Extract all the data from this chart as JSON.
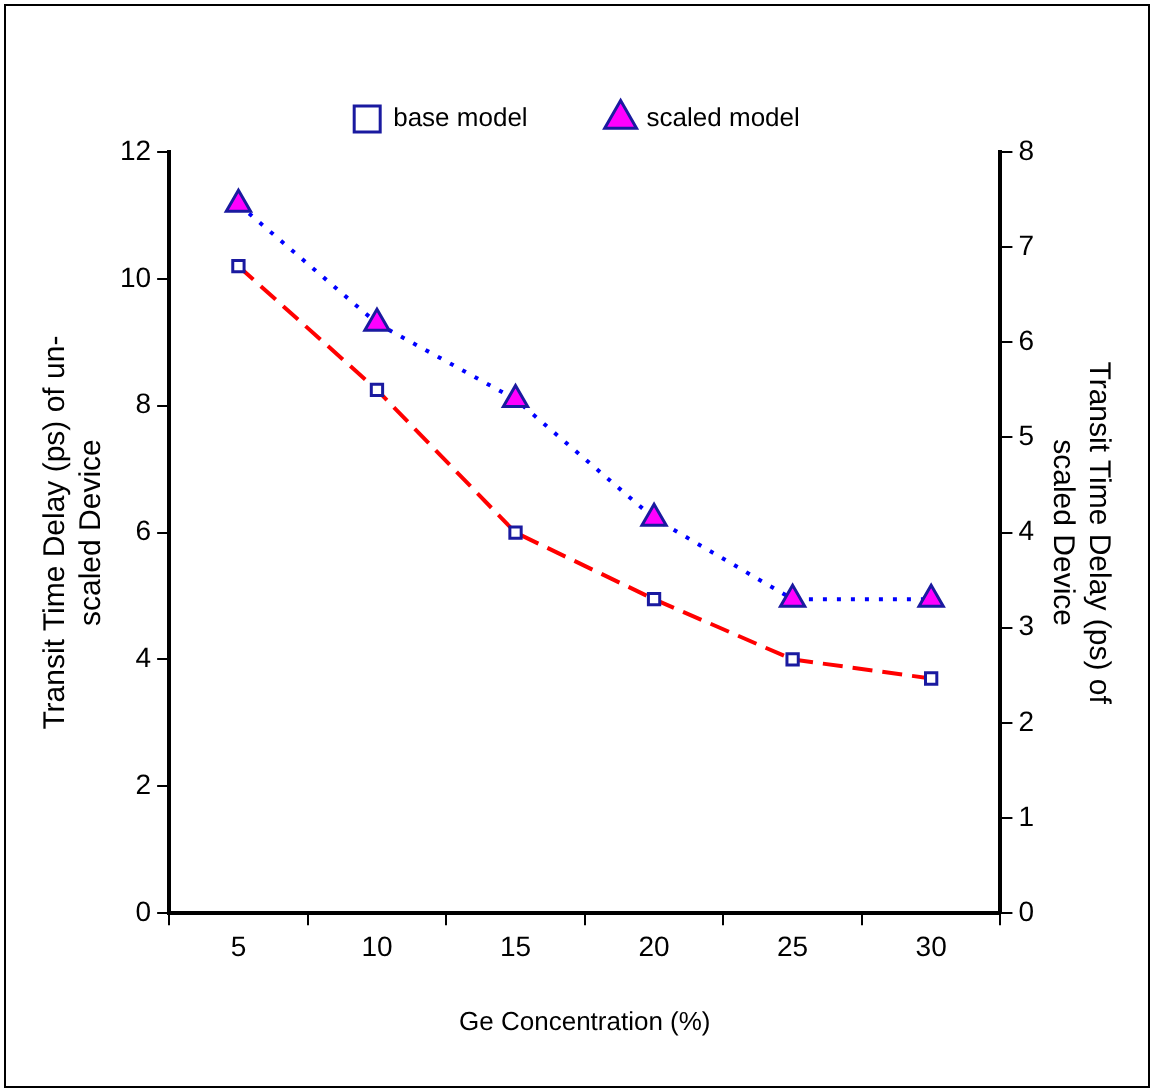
{
  "chart_data": {
    "type": "line",
    "categories": [
      "5",
      "10",
      "15",
      "20",
      "25",
      "30"
    ],
    "xlabel": "Ge Concentration (%)",
    "ylabel": "Transit Time Delay (ps) of un-\nscaled Device",
    "y2label": "Transit Time Delay (ps) of\nscaled Device",
    "ylim": [
      0,
      12
    ],
    "yticks": [
      0,
      2,
      4,
      6,
      8,
      10,
      12
    ],
    "y2lim": [
      0,
      8
    ],
    "y2ticks": [
      0,
      1,
      2,
      3,
      4,
      5,
      6,
      7,
      8
    ],
    "grid": false,
    "legend": "top",
    "series": [
      {
        "name": "base model",
        "color": "#ff0000",
        "marker": "square",
        "line_style": "dashed",
        "values": [
          10.2,
          8.25,
          6.0,
          4.95,
          4.0,
          3.7
        ]
      },
      {
        "name": "scaled model",
        "color": "#0000ff",
        "marker": "triangle",
        "line_style": "dotted",
        "axis": "y2",
        "values": [
          7.45,
          6.2,
          5.4,
          4.15,
          3.3,
          3.3
        ]
      }
    ]
  }
}
